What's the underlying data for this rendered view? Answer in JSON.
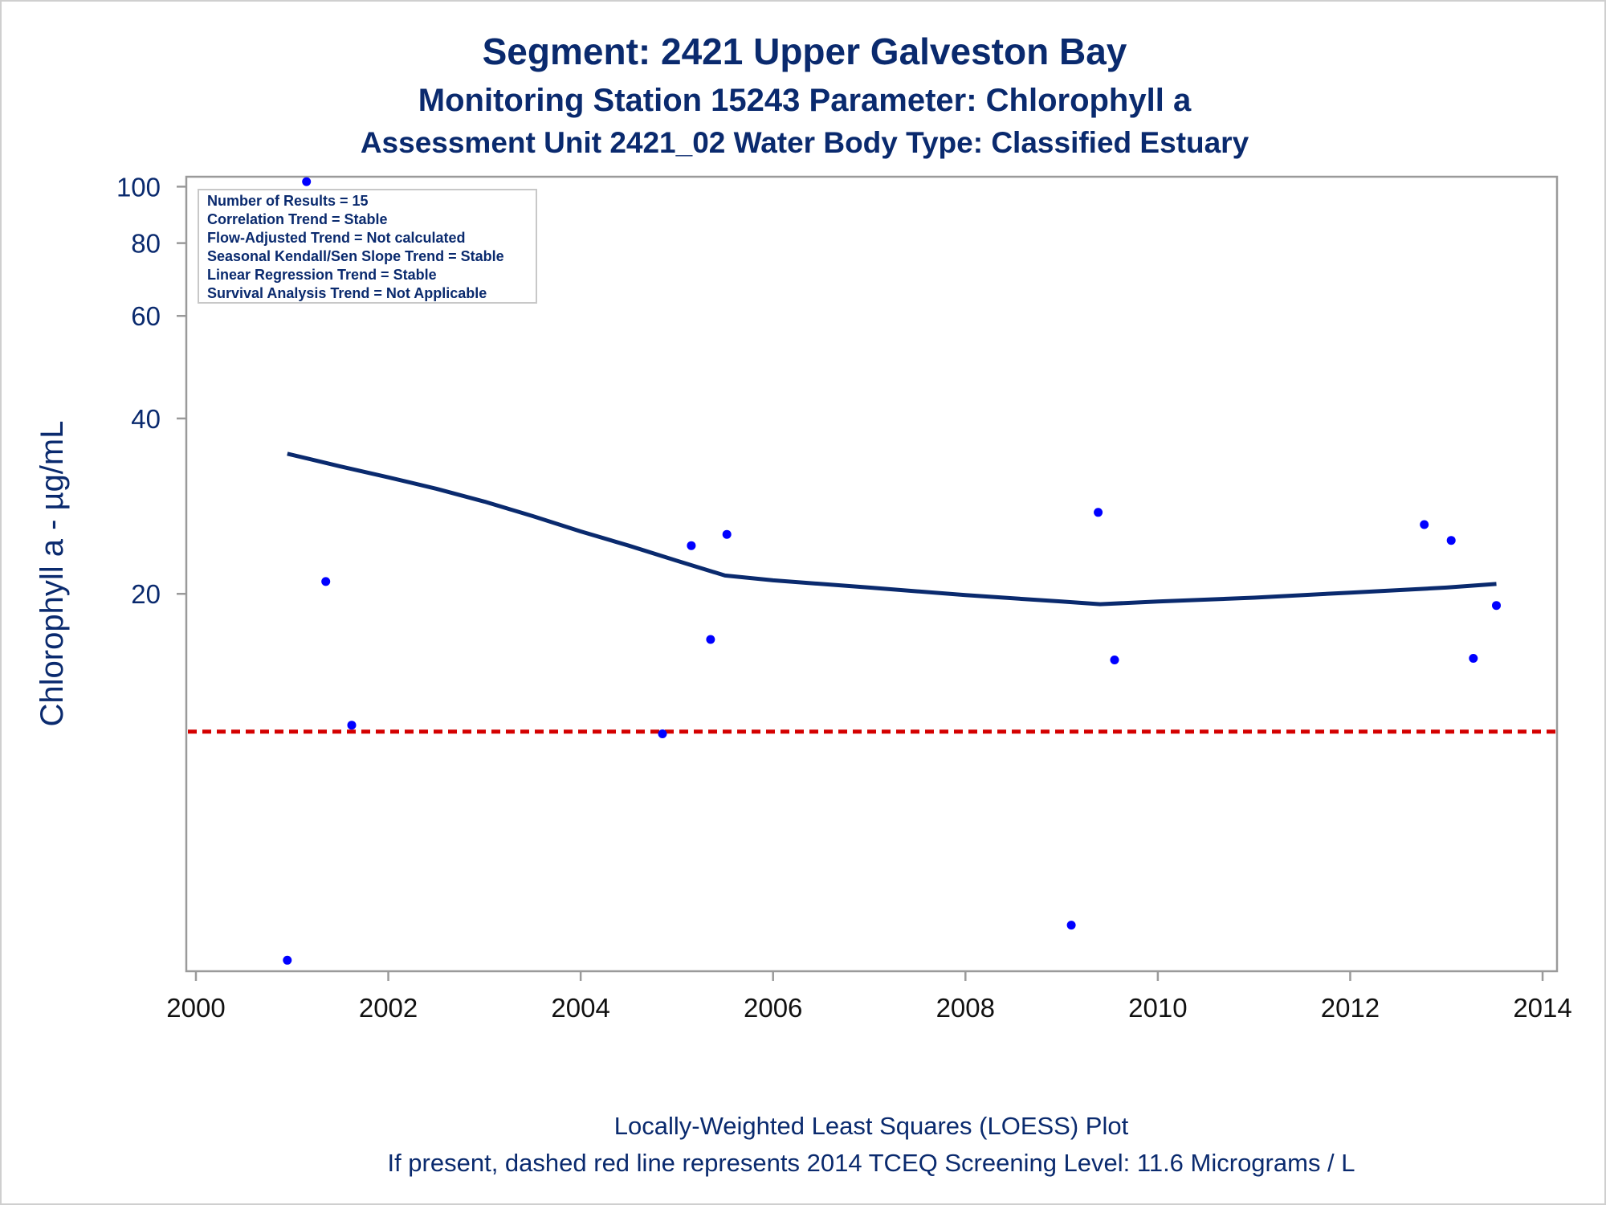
{
  "titles": {
    "line1": "Segment: 2421  Upper Galveston Bay",
    "line2": "Monitoring Station 15243 Parameter: Chlorophyll a",
    "line3": "Assessment Unit 2421_02   Water Body Type: Classified Estuary"
  },
  "stats_box": [
    "Number of Results = 15",
    "Correlation Trend = Stable",
    "Flow-Adjusted Trend = Not calculated",
    "Seasonal Kendall/Sen Slope Trend = Stable",
    "Linear Regression Trend = Stable",
    "Survival Analysis Trend = Not Applicable"
  ],
  "footer": {
    "line1": "Locally-Weighted Least Squares (LOESS) Plot",
    "line2": "If present, dashed red line represents 2014 TCEQ Screening Level: 11.6 Micrograms / L"
  },
  "colors": {
    "title": "#0a2a6e",
    "points": "#0000ff",
    "loess": "#0a2a6e",
    "screening": "#d40000",
    "axis_text_y": "#0a2a6e",
    "axis_text_x": "#111111",
    "frame": "#9a9a9a"
  },
  "chart_data": {
    "type": "scatter",
    "xlabel": "",
    "ylabel": "Chlorophyll a -  µg/mL",
    "x_scale": "linear (year)",
    "y_scale": "log",
    "xlim": [
      1999.9,
      2014.15
    ],
    "ylim": [
      4.5,
      104
    ],
    "x_ticks": [
      2000,
      2002,
      2004,
      2006,
      2008,
      2010,
      2012,
      2014
    ],
    "y_ticks": [
      20,
      40,
      60,
      80,
      100
    ],
    "grid": false,
    "legend": "none",
    "series": [
      {
        "type": "scatter",
        "x": [
          2000.95,
          2001.15,
          2001.35,
          2001.62,
          2004.85,
          2005.15,
          2005.35,
          2005.52,
          2009.1,
          2009.38,
          2009.55,
          2012.77,
          2013.05,
          2013.28,
          2013.52
        ],
        "y": [
          4.7,
          102,
          21,
          11.9,
          11.5,
          24.2,
          16.7,
          25.3,
          5.4,
          27.6,
          15.4,
          26.3,
          24.7,
          15.5,
          19.1
        ]
      },
      {
        "type": "line",
        "x": [
          2000.95,
          2001.5,
          2002.0,
          2002.5,
          2003.0,
          2003.5,
          2004.0,
          2004.5,
          2005.0,
          2005.5,
          2006.0,
          2007.0,
          2008.0,
          2009.0,
          2009.4,
          2010.0,
          2011.0,
          2012.0,
          2013.0,
          2013.52
        ],
        "y": [
          34.8,
          33.1,
          31.7,
          30.3,
          28.8,
          27.2,
          25.6,
          24.2,
          22.8,
          21.5,
          21.1,
          20.5,
          19.9,
          19.4,
          19.2,
          19.4,
          19.7,
          20.1,
          20.5,
          20.8
        ]
      },
      {
        "type": "reference",
        "y": 11.6
      }
    ]
  }
}
